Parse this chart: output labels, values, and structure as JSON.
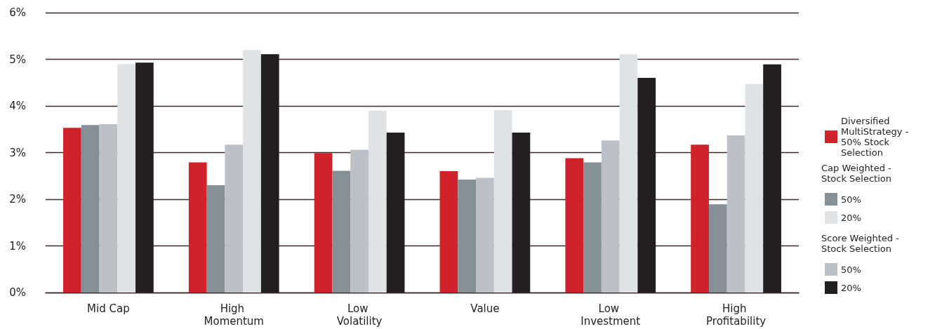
{
  "chart_data": {
    "type": "bar",
    "categories": [
      "Mid Cap",
      "High Momentum",
      "Low Volatility",
      "Value",
      "Low Investment",
      "High Profitability"
    ],
    "series": [
      {
        "name": "Diversified MultiStrategy - 50% Stock Selection",
        "color": "#d0222a",
        "values": [
          3.53,
          2.79,
          2.99,
          2.6,
          2.88,
          3.17
        ]
      },
      {
        "name": "50%",
        "color": "#848f96",
        "values": [
          3.59,
          2.3,
          2.61,
          2.42,
          2.79,
          1.89
        ]
      },
      {
        "name": "50%",
        "color": "#bbc1c7",
        "values": [
          3.61,
          3.17,
          3.06,
          2.46,
          3.26,
          3.37
        ]
      },
      {
        "name": "20%",
        "color": "#e0e3e6",
        "values": [
          4.9,
          5.2,
          3.9,
          3.91,
          5.11,
          4.47
        ]
      },
      {
        "name": "20%",
        "color": "#231f20",
        "values": [
          4.93,
          5.11,
          3.43,
          3.43,
          4.6,
          4.89
        ]
      }
    ],
    "annotations": [
      "Cap Weighted - Stock Selection",
      "Score Weighted - Stock Selection"
    ],
    "ylim": [
      0,
      6
    ],
    "yticks": [
      {
        "value": 0,
        "label": "0%"
      },
      {
        "value": 1,
        "label": "1%"
      },
      {
        "value": 2,
        "label": "2%"
      },
      {
        "value": 3,
        "label": "3%"
      },
      {
        "value": 4,
        "label": "4%"
      },
      {
        "value": 5,
        "label": "5%"
      },
      {
        "value": 6,
        "label": "6%"
      }
    ],
    "grid": "y",
    "legend": "right"
  }
}
